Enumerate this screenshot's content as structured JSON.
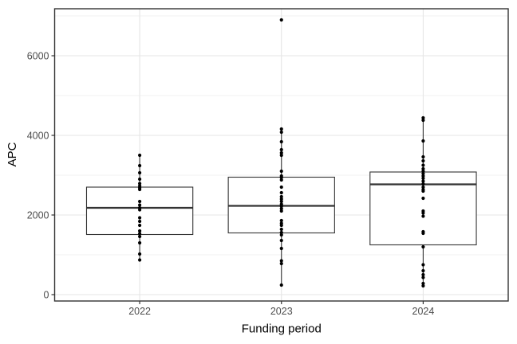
{
  "chart_data": {
    "type": "boxplot",
    "title": "",
    "xlabel": "Funding period",
    "ylabel": "APC",
    "categories": [
      "2022",
      "2023",
      "2024"
    ],
    "y_ticks": [
      0,
      2000,
      4000,
      6000
    ],
    "y_minor_ticks": [
      1000,
      3000,
      5000,
      7000
    ],
    "ylim": [
      -160,
      7180
    ],
    "grid": "on",
    "legend": "none",
    "series": [
      {
        "name": "2022",
        "box": {
          "lower_whisker": 870,
          "q1": 1510,
          "median": 2180,
          "q3": 2700,
          "upper_whisker": 3500
        },
        "outliers": [],
        "points": [
          3500,
          3240,
          3060,
          2900,
          2790,
          2730,
          2680,
          2640,
          2340,
          2250,
          2180,
          2130,
          1930,
          1840,
          1740,
          1600,
          1530,
          1460,
          1300,
          1020,
          870
        ]
      },
      {
        "name": "2023",
        "box": {
          "lower_whisker": 240,
          "q1": 1550,
          "median": 2230,
          "q3": 2950,
          "upper_whisker": 4160
        },
        "outliers": [
          6900
        ],
        "points": [
          6900,
          4160,
          4080,
          3840,
          3640,
          3560,
          3500,
          3100,
          2980,
          2940,
          2880,
          2700,
          2560,
          2460,
          2400,
          2340,
          2270,
          2220,
          2160,
          2100,
          1860,
          1790,
          1740,
          1640,
          1560,
          1500,
          1360,
          1160,
          850,
          780,
          240
        ]
      },
      {
        "name": "2024",
        "box": {
          "lower_whisker": 220,
          "q1": 1250,
          "median": 2770,
          "q3": 3080,
          "upper_whisker": 4440
        },
        "outliers": [],
        "points": [
          4440,
          4380,
          3860,
          3460,
          3360,
          3250,
          3160,
          3100,
          3040,
          2980,
          2920,
          2850,
          2780,
          2700,
          2640,
          2600,
          2420,
          2100,
          2050,
          1970,
          1580,
          1540,
          1200,
          750,
          600,
          500,
          430,
          280,
          220
        ]
      }
    ]
  },
  "colors": {
    "background": "#ffffff",
    "panel_fill": "#ffffff",
    "panel_border": "#333333",
    "grid_major": "#e5e5e5",
    "grid_minor": "#f2f2f2",
    "box_stroke": "#333333",
    "box_fill": "#ffffff",
    "point": "#000000",
    "tick_mark": "#333333",
    "tick_label": "#4d4d4d",
    "axis_title": "#000000"
  }
}
